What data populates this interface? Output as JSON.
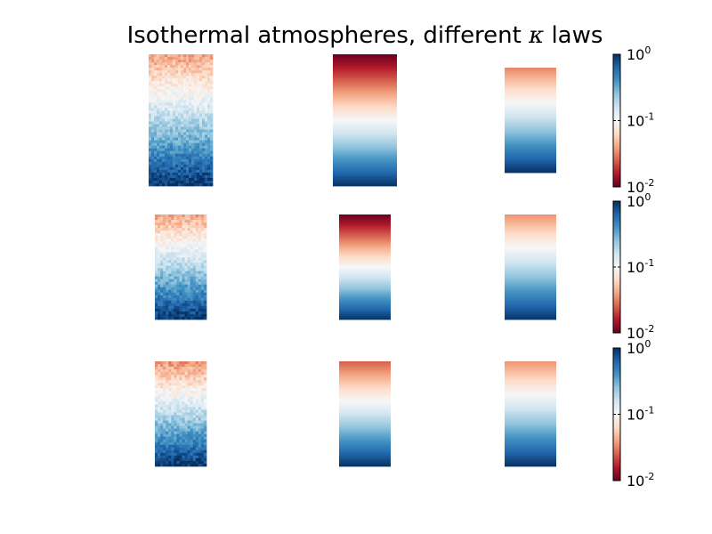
{
  "chart_data": {
    "type": "heatmap",
    "title_prefix": "Isothermal atmospheres, different ",
    "title_symbol": "κ",
    "title_suffix": " laws",
    "colormap": "RdBu",
    "colormap_stops": [
      "#67001f",
      "#b2182b",
      "#d6604d",
      "#f4a582",
      "#fddbc7",
      "#f7f7f7",
      "#d1e5f0",
      "#92c5de",
      "#4393c3",
      "#2166ac",
      "#053061"
    ],
    "color_scale": "log",
    "grid": false,
    "rows": [
      {
        "colorbar": {
          "range": [
            0.01,
            1
          ],
          "ticks": [
            {
              "base": "10",
              "exp": "0"
            },
            {
              "base": "10",
              "exp": "-1"
            },
            {
              "base": "10",
              "exp": "-2"
            }
          ]
        },
        "panels": [
          {
            "top_value": 0.038,
            "bottom_value": 0.98,
            "noise": 0.12
          },
          {
            "top_value": 0.01,
            "bottom_value": 0.98,
            "noise": 0.0
          },
          {
            "top_value": 0.032,
            "bottom_value": 0.98,
            "noise": 0.0
          }
        ]
      },
      {
        "colorbar": {
          "range": [
            0.01,
            1
          ],
          "ticks": [
            {
              "base": "10",
              "exp": "0"
            },
            {
              "base": "10",
              "exp": "-1"
            },
            {
              "base": "10",
              "exp": "-2"
            }
          ]
        },
        "panels": [
          {
            "top_value": 0.04,
            "bottom_value": 0.98,
            "noise": 0.12
          },
          {
            "top_value": 0.01,
            "bottom_value": 0.98,
            "noise": 0.0
          },
          {
            "top_value": 0.035,
            "bottom_value": 0.95,
            "noise": 0.0
          }
        ]
      },
      {
        "colorbar": {
          "range": [
            0.01,
            1
          ],
          "ticks": [
            {
              "base": "10",
              "exp": "0"
            },
            {
              "base": "10",
              "exp": "-1"
            },
            {
              "base": "10",
              "exp": "-2"
            }
          ]
        },
        "panels": [
          {
            "top_value": 0.035,
            "bottom_value": 0.98,
            "noise": 0.12
          },
          {
            "top_value": 0.025,
            "bottom_value": 0.98,
            "noise": 0.0
          },
          {
            "top_value": 0.035,
            "bottom_value": 0.98,
            "noise": 0.0
          }
        ]
      }
    ]
  }
}
